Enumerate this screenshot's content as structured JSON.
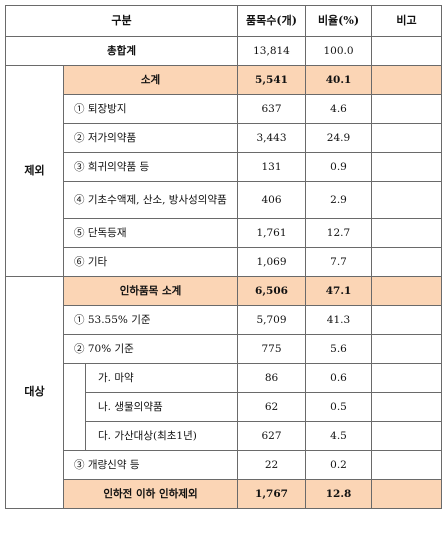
{
  "header": {
    "category": "구분",
    "count": "품목수(개)",
    "ratio": "비율(%)",
    "note": "비고"
  },
  "total": {
    "label": "총합계",
    "count": "13,814",
    "ratio": "100.0"
  },
  "excluded": {
    "group": "제외",
    "subtotal": {
      "label": "소계",
      "count": "5,541",
      "ratio": "40.1"
    },
    "rows": [
      {
        "label": "① 퇴장방지",
        "count": "637",
        "ratio": "4.6"
      },
      {
        "label": "② 저가의약품",
        "count": "3,443",
        "ratio": "24.9"
      },
      {
        "label": "③ 희귀의약품 등",
        "count": "131",
        "ratio": "0.9"
      },
      {
        "label": "④ 기초수액제, 산소, 방사성의약품",
        "count": "406",
        "ratio": "2.9"
      },
      {
        "label": "⑤ 단독등재",
        "count": "1,761",
        "ratio": "12.7"
      },
      {
        "label": "⑥ 기타",
        "count": "1,069",
        "ratio": "7.7"
      }
    ]
  },
  "target": {
    "group": "대상",
    "subtotal": {
      "label": "인하품목 소계",
      "count": "6,506",
      "ratio": "47.1"
    },
    "r1": {
      "label": "① 53.55% 기준",
      "count": "5,709",
      "ratio": "41.3"
    },
    "r2": {
      "label": "② 70% 기준",
      "count": "775",
      "ratio": "5.6"
    },
    "sub": [
      {
        "label": "가. 마약",
        "count": "86",
        "ratio": "0.6"
      },
      {
        "label": "나. 생물의약품",
        "count": "62",
        "ratio": "0.5"
      },
      {
        "label": "다. 가산대상(최초1년)",
        "count": "627",
        "ratio": "4.5"
      }
    ],
    "r3": {
      "label": "③ 개량신약 등",
      "count": "22",
      "ratio": "0.2"
    },
    "final": {
      "label": "인하전 이하 인하제외",
      "count": "1,767",
      "ratio": "12.8"
    }
  },
  "colors": {
    "highlight": "#fbd5b5",
    "border": "#6a6a6a"
  }
}
